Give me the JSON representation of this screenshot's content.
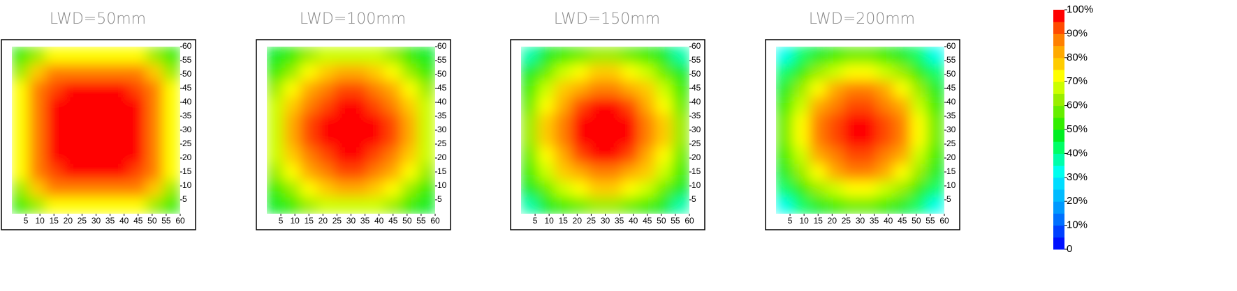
{
  "chart_data": [
    {
      "type": "heatmap",
      "title": "LWD=50mm",
      "x": [
        3,
        9,
        15,
        21,
        27,
        33,
        39,
        45,
        51,
        57
      ],
      "y": [
        3,
        9,
        15,
        21,
        27,
        33,
        39,
        45,
        51,
        57
      ],
      "xlim": [
        0,
        60
      ],
      "ylim": [
        0,
        60
      ],
      "xticks": [
        5,
        10,
        15,
        20,
        25,
        30,
        35,
        40,
        45,
        50,
        55,
        60
      ],
      "yticks": [
        5,
        10,
        15,
        20,
        25,
        30,
        35,
        40,
        45,
        50,
        55,
        60
      ],
      "values": [
        [
          52,
          63,
          70,
          72,
          72,
          72,
          72,
          70,
          63,
          52
        ],
        [
          63,
          77,
          85,
          88,
          88,
          88,
          88,
          85,
          77,
          63
        ],
        [
          70,
          85,
          94,
          97,
          97,
          97,
          97,
          94,
          85,
          70
        ],
        [
          72,
          88,
          97,
          100,
          100,
          100,
          100,
          97,
          88,
          72
        ],
        [
          72,
          88,
          97,
          100,
          100,
          100,
          100,
          97,
          88,
          72
        ],
        [
          72,
          88,
          97,
          100,
          100,
          100,
          100,
          97,
          88,
          72
        ],
        [
          72,
          88,
          97,
          100,
          100,
          100,
          100,
          97,
          88,
          72
        ],
        [
          70,
          85,
          94,
          97,
          97,
          97,
          97,
          94,
          85,
          70
        ],
        [
          63,
          77,
          85,
          88,
          88,
          88,
          88,
          85,
          77,
          63
        ],
        [
          52,
          63,
          70,
          72,
          72,
          72,
          72,
          70,
          63,
          52
        ]
      ]
    },
    {
      "type": "heatmap",
      "title": "LWD=100mm",
      "x": [
        3,
        9,
        15,
        21,
        27,
        33,
        39,
        45,
        51,
        57
      ],
      "y": [
        3,
        9,
        15,
        21,
        27,
        33,
        39,
        45,
        51,
        57
      ],
      "xlim": [
        0,
        60
      ],
      "ylim": [
        0,
        60
      ],
      "xticks": [
        5,
        10,
        15,
        20,
        25,
        30,
        35,
        40,
        45,
        50,
        55,
        60
      ],
      "yticks": [
        5,
        10,
        15,
        20,
        25,
        30,
        35,
        40,
        45,
        50,
        55,
        60
      ],
      "values": [
        [
          46,
          54,
          61,
          65,
          68,
          68,
          65,
          61,
          54,
          46
        ],
        [
          54,
          64,
          72,
          77,
          80,
          80,
          77,
          72,
          64,
          54
        ],
        [
          61,
          72,
          81,
          86,
          90,
          90,
          86,
          81,
          72,
          61
        ],
        [
          65,
          77,
          86,
          92,
          96,
          96,
          92,
          86,
          77,
          65
        ],
        [
          68,
          80,
          90,
          96,
          100,
          100,
          96,
          90,
          80,
          68
        ],
        [
          68,
          80,
          90,
          96,
          100,
          100,
          96,
          90,
          80,
          68
        ],
        [
          65,
          77,
          86,
          92,
          96,
          96,
          92,
          86,
          77,
          65
        ],
        [
          61,
          72,
          81,
          86,
          90,
          90,
          86,
          81,
          72,
          61
        ],
        [
          54,
          64,
          72,
          77,
          80,
          80,
          77,
          72,
          64,
          54
        ],
        [
          46,
          54,
          61,
          65,
          68,
          68,
          65,
          61,
          54,
          46
        ]
      ]
    },
    {
      "type": "heatmap",
      "title": "LWD=150mm",
      "x": [
        3,
        9,
        15,
        21,
        27,
        33,
        39,
        45,
        51,
        57
      ],
      "y": [
        3,
        9,
        15,
        21,
        27,
        33,
        39,
        45,
        51,
        57
      ],
      "xlim": [
        0,
        60
      ],
      "ylim": [
        0,
        60
      ],
      "xticks": [
        5,
        10,
        15,
        20,
        25,
        30,
        35,
        40,
        45,
        50,
        55,
        60
      ],
      "yticks": [
        5,
        10,
        15,
        20,
        25,
        30,
        35,
        40,
        45,
        50,
        55,
        60
      ],
      "values": [
        [
          38,
          47,
          54,
          59,
          62,
          62,
          59,
          54,
          47,
          38
        ],
        [
          47,
          58,
          66,
          72,
          76,
          76,
          72,
          66,
          58,
          47
        ],
        [
          54,
          66,
          76,
          83,
          87,
          87,
          83,
          76,
          66,
          54
        ],
        [
          59,
          72,
          83,
          90,
          95,
          95,
          90,
          83,
          72,
          59
        ],
        [
          62,
          76,
          87,
          95,
          100,
          100,
          95,
          87,
          76,
          62
        ],
        [
          62,
          76,
          87,
          95,
          100,
          100,
          95,
          87,
          76,
          62
        ],
        [
          59,
          72,
          83,
          90,
          95,
          95,
          90,
          83,
          72,
          59
        ],
        [
          54,
          66,
          76,
          83,
          87,
          87,
          83,
          76,
          66,
          54
        ],
        [
          47,
          58,
          66,
          72,
          76,
          76,
          72,
          66,
          58,
          47
        ],
        [
          38,
          47,
          54,
          59,
          62,
          62,
          59,
          54,
          47,
          38
        ]
      ]
    },
    {
      "type": "heatmap",
      "title": "LWD=200mm",
      "x": [
        3,
        9,
        15,
        21,
        27,
        33,
        39,
        45,
        51,
        57
      ],
      "y": [
        3,
        9,
        15,
        21,
        27,
        33,
        39,
        45,
        51,
        57
      ],
      "xlim": [
        0,
        60
      ],
      "ylim": [
        0,
        60
      ],
      "xticks": [
        5,
        10,
        15,
        20,
        25,
        30,
        35,
        40,
        45,
        50,
        55,
        60
      ],
      "yticks": [
        5,
        10,
        15,
        20,
        25,
        30,
        35,
        40,
        45,
        50,
        55,
        60
      ],
      "values": [
        [
          30,
          40,
          47,
          52,
          55,
          55,
          52,
          47,
          40,
          30
        ],
        [
          40,
          52,
          61,
          68,
          72,
          72,
          68,
          61,
          52,
          40
        ],
        [
          47,
          61,
          72,
          80,
          85,
          85,
          80,
          72,
          61,
          47
        ],
        [
          52,
          68,
          80,
          88,
          94,
          94,
          88,
          80,
          68,
          52
        ],
        [
          55,
          72,
          85,
          94,
          100,
          100,
          94,
          85,
          72,
          55
        ],
        [
          55,
          72,
          85,
          94,
          100,
          100,
          94,
          85,
          72,
          55
        ],
        [
          52,
          68,
          80,
          88,
          94,
          94,
          88,
          80,
          68,
          52
        ],
        [
          47,
          61,
          72,
          80,
          85,
          85,
          80,
          72,
          61,
          47
        ],
        [
          40,
          52,
          61,
          68,
          72,
          72,
          68,
          61,
          52,
          40
        ],
        [
          30,
          40,
          47,
          52,
          55,
          55,
          52,
          47,
          40,
          30
        ]
      ]
    }
  ],
  "colorbar": {
    "lim": [
      0,
      100
    ],
    "step": 5,
    "colors": [
      "#0010ff",
      "#0040ff",
      "#0070ff",
      "#0099ff",
      "#00bbff",
      "#00ddff",
      "#00ffee",
      "#00ffaa",
      "#00ff66",
      "#00ee22",
      "#33ee00",
      "#66ee00",
      "#99ee00",
      "#ccff00",
      "#ffff00",
      "#ffcc00",
      "#ffaa00",
      "#ff8000",
      "#ff4a00",
      "#ff0000"
    ],
    "ticks": [
      {
        "value": 0,
        "label": "0"
      },
      {
        "value": 10,
        "label": "10%"
      },
      {
        "value": 20,
        "label": "20%"
      },
      {
        "value": 30,
        "label": "30%"
      },
      {
        "value": 40,
        "label": "40%"
      },
      {
        "value": 50,
        "label": "50%"
      },
      {
        "value": 60,
        "label": "60%"
      },
      {
        "value": 70,
        "label": "70%"
      },
      {
        "value": 80,
        "label": "80%"
      },
      {
        "value": 90,
        "label": "90%"
      },
      {
        "value": 100,
        "label": "100%"
      }
    ]
  }
}
